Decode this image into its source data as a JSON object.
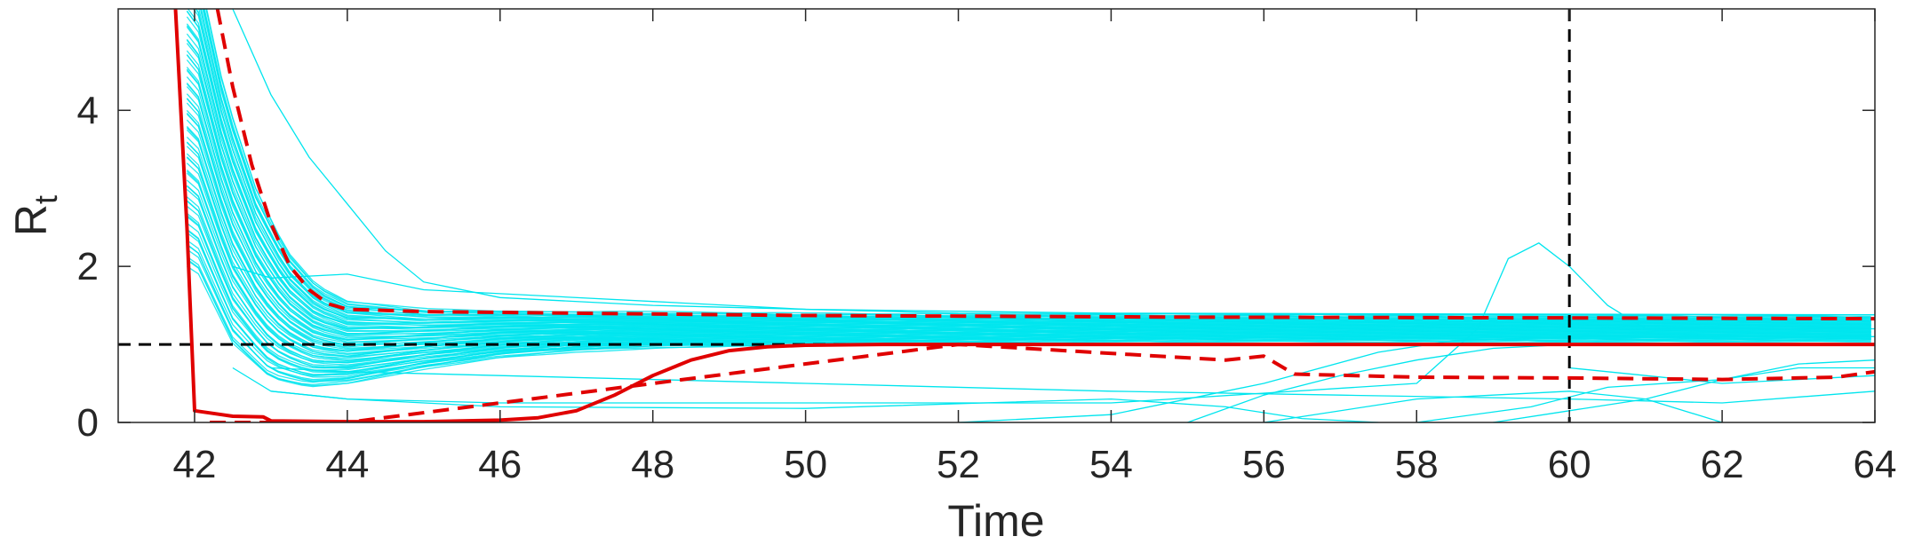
{
  "chart_data": {
    "type": "line",
    "title": "",
    "xlabel": "Time",
    "ylabel": {
      "main": "R",
      "subscript": "t"
    },
    "xlim": [
      41,
      64
    ],
    "ylim": [
      0,
      5.3
    ],
    "xticks": [
      42,
      44,
      46,
      48,
      50,
      52,
      54,
      56,
      58,
      60,
      62,
      64
    ],
    "yticks": [
      0,
      2,
      4
    ],
    "grid": false,
    "legend": "none",
    "reference_lines": [
      {
        "orientation": "horizontal",
        "value": 1,
        "style": "dashed",
        "color": "#000000"
      },
      {
        "orientation": "vertical",
        "value": 60,
        "style": "dashed",
        "color": "#000000"
      }
    ],
    "colors": {
      "samples": "#00e5ee",
      "median": "#e00000",
      "bounds": "#e00000",
      "reference": "#000000"
    },
    "sample_curves": {
      "description": "ensemble of individual estimates",
      "upper_band_stable": [
        [
          42.0,
          6.0
        ],
        [
          42.4,
          4.2
        ],
        [
          42.8,
          3.0
        ],
        [
          43.2,
          2.2
        ],
        [
          43.6,
          1.75
        ],
        [
          44.0,
          1.55
        ],
        [
          45.0,
          1.45
        ],
        [
          47.0,
          1.4
        ],
        [
          50.0,
          1.38
        ],
        [
          55.0,
          1.36
        ],
        [
          60.0,
          1.35
        ],
        [
          64.0,
          1.35
        ]
      ],
      "lower_band_stable": [
        [
          42.0,
          2.0
        ],
        [
          42.5,
          1.0
        ],
        [
          43.0,
          0.55
        ],
        [
          43.5,
          0.45
        ],
        [
          44.0,
          0.5
        ],
        [
          45.0,
          0.7
        ],
        [
          46.0,
          0.85
        ],
        [
          47.0,
          0.93
        ],
        [
          48.0,
          0.97
        ],
        [
          50.0,
          1.0
        ],
        [
          55.0,
          1.05
        ],
        [
          64.0,
          1.05
        ]
      ],
      "outliers": [
        [
          [
            42.5,
            5.3
          ],
          [
            43.0,
            4.2
          ],
          [
            43.5,
            3.4
          ],
          [
            44.0,
            2.8
          ],
          [
            44.5,
            2.2
          ],
          [
            45.0,
            1.8
          ],
          [
            46.0,
            1.6
          ],
          [
            48.0,
            1.5
          ],
          [
            52.0,
            1.4
          ],
          [
            58.0,
            1.38
          ],
          [
            64.0,
            1.38
          ]
        ],
        [
          [
            42.5,
            2.0
          ],
          [
            43.0,
            1.85
          ],
          [
            44.0,
            1.9
          ],
          [
            45.0,
            1.7
          ],
          [
            46.0,
            1.65
          ],
          [
            48.0,
            1.55
          ],
          [
            50.0,
            1.45
          ],
          [
            54.0,
            1.4
          ],
          [
            64.0,
            1.38
          ]
        ],
        [
          [
            43.0,
            0.4
          ],
          [
            44.0,
            0.3
          ],
          [
            46.0,
            0.25
          ],
          [
            50.0,
            0.25
          ],
          [
            54.0,
            0.25
          ],
          [
            58.0,
            0.5
          ],
          [
            58.8,
            1.2
          ],
          [
            59.2,
            2.1
          ],
          [
            59.6,
            2.3
          ],
          [
            60.0,
            2.0
          ],
          [
            60.5,
            1.5
          ],
          [
            61.0,
            1.2
          ],
          [
            64.0,
            1.2
          ]
        ],
        [
          [
            42.5,
            0.7
          ],
          [
            43.0,
            0.4
          ],
          [
            44.0,
            0.3
          ],
          [
            46.0,
            0.2
          ],
          [
            50.0,
            0.18
          ],
          [
            54.0,
            0.3
          ],
          [
            55.5,
            0.2
          ],
          [
            56.5,
            0.05
          ],
          [
            57.5,
            0.0
          ]
        ],
        [
          [
            55.0,
            0.0
          ],
          [
            56.0,
            0.35
          ],
          [
            57.0,
            0.6
          ],
          [
            58.0,
            0.8
          ],
          [
            59.0,
            0.95
          ],
          [
            60.0,
            1.0
          ],
          [
            64.0,
            1.0
          ]
        ],
        [
          [
            43.0,
            0.7
          ],
          [
            44.0,
            0.65
          ],
          [
            46.0,
            0.6
          ],
          [
            50.0,
            0.5
          ],
          [
            54.0,
            0.4
          ],
          [
            57.0,
            0.35
          ],
          [
            60.0,
            0.3
          ],
          [
            62.0,
            0.25
          ],
          [
            64.0,
            0.4
          ]
        ],
        [
          [
            52.0,
            0.0
          ],
          [
            54.0,
            0.1
          ],
          [
            56.0,
            0.5
          ],
          [
            57.5,
            0.9
          ],
          [
            58.5,
            1.05
          ],
          [
            60.0,
            1.1
          ],
          [
            64.0,
            1.1
          ]
        ],
        [
          [
            56.0,
            0.0
          ],
          [
            58.0,
            0.3
          ],
          [
            60.0,
            0.4
          ],
          [
            61.0,
            0.3
          ],
          [
            62.0,
            0.0
          ]
        ],
        [
          [
            58.0,
            0.0
          ],
          [
            59.5,
            0.2
          ],
          [
            60.5,
            0.45
          ],
          [
            62.0,
            0.55
          ],
          [
            63.0,
            0.7
          ],
          [
            64.0,
            0.7
          ]
        ],
        [
          [
            59.0,
            0.0
          ],
          [
            60.0,
            0.15
          ],
          [
            61.0,
            0.3
          ],
          [
            62.0,
            0.55
          ],
          [
            63.0,
            0.75
          ],
          [
            64.0,
            0.8
          ]
        ],
        [
          [
            60.0,
            0.7
          ],
          [
            61.0,
            0.6
          ],
          [
            62.0,
            0.5
          ],
          [
            63.0,
            0.55
          ],
          [
            64.0,
            0.6
          ]
        ]
      ]
    },
    "series": [
      {
        "role": "median",
        "style": "solid",
        "color": "#e00000",
        "points": [
          [
            41.75,
            5.3
          ],
          [
            41.9,
            2.5
          ],
          [
            42.0,
            0.15
          ],
          [
            42.5,
            0.08
          ],
          [
            42.9,
            0.07
          ],
          [
            43.0,
            0.02
          ],
          [
            44.0,
            0.01
          ],
          [
            45.0,
            0.01
          ],
          [
            46.0,
            0.03
          ],
          [
            46.5,
            0.06
          ],
          [
            47.0,
            0.15
          ],
          [
            47.5,
            0.35
          ],
          [
            48.0,
            0.6
          ],
          [
            48.5,
            0.8
          ],
          [
            49.0,
            0.92
          ],
          [
            49.5,
            0.97
          ],
          [
            50.0,
            0.99
          ],
          [
            51.0,
            1.0
          ],
          [
            52.0,
            1.0
          ],
          [
            56.0,
            1.0
          ],
          [
            60.0,
            1.0
          ],
          [
            64.0,
            1.0
          ]
        ]
      },
      {
        "role": "upper_bound",
        "style": "dashed",
        "color": "#e00000",
        "points": [
          [
            42.3,
            5.3
          ],
          [
            42.5,
            4.3
          ],
          [
            42.75,
            3.3
          ],
          [
            43.0,
            2.55
          ],
          [
            43.25,
            2.0
          ],
          [
            43.5,
            1.7
          ],
          [
            43.75,
            1.52
          ],
          [
            44.0,
            1.45
          ],
          [
            45.0,
            1.42
          ],
          [
            47.0,
            1.4
          ],
          [
            50.0,
            1.37
          ],
          [
            55.0,
            1.35
          ],
          [
            60.0,
            1.34
          ],
          [
            64.0,
            1.33
          ]
        ]
      },
      {
        "role": "lower_bound",
        "style": "dashed",
        "color": "#e00000",
        "points": [
          [
            42.2,
            0.0
          ],
          [
            43.0,
            0.0
          ],
          [
            44.0,
            0.0
          ],
          [
            52.0,
            1.0
          ],
          [
            55.5,
            0.8
          ],
          [
            56.0,
            0.85
          ],
          [
            56.4,
            0.62
          ],
          [
            58.0,
            0.58
          ],
          [
            60.0,
            0.57
          ],
          [
            62.0,
            0.55
          ],
          [
            63.5,
            0.58
          ],
          [
            64.0,
            0.65
          ]
        ]
      }
    ]
  }
}
